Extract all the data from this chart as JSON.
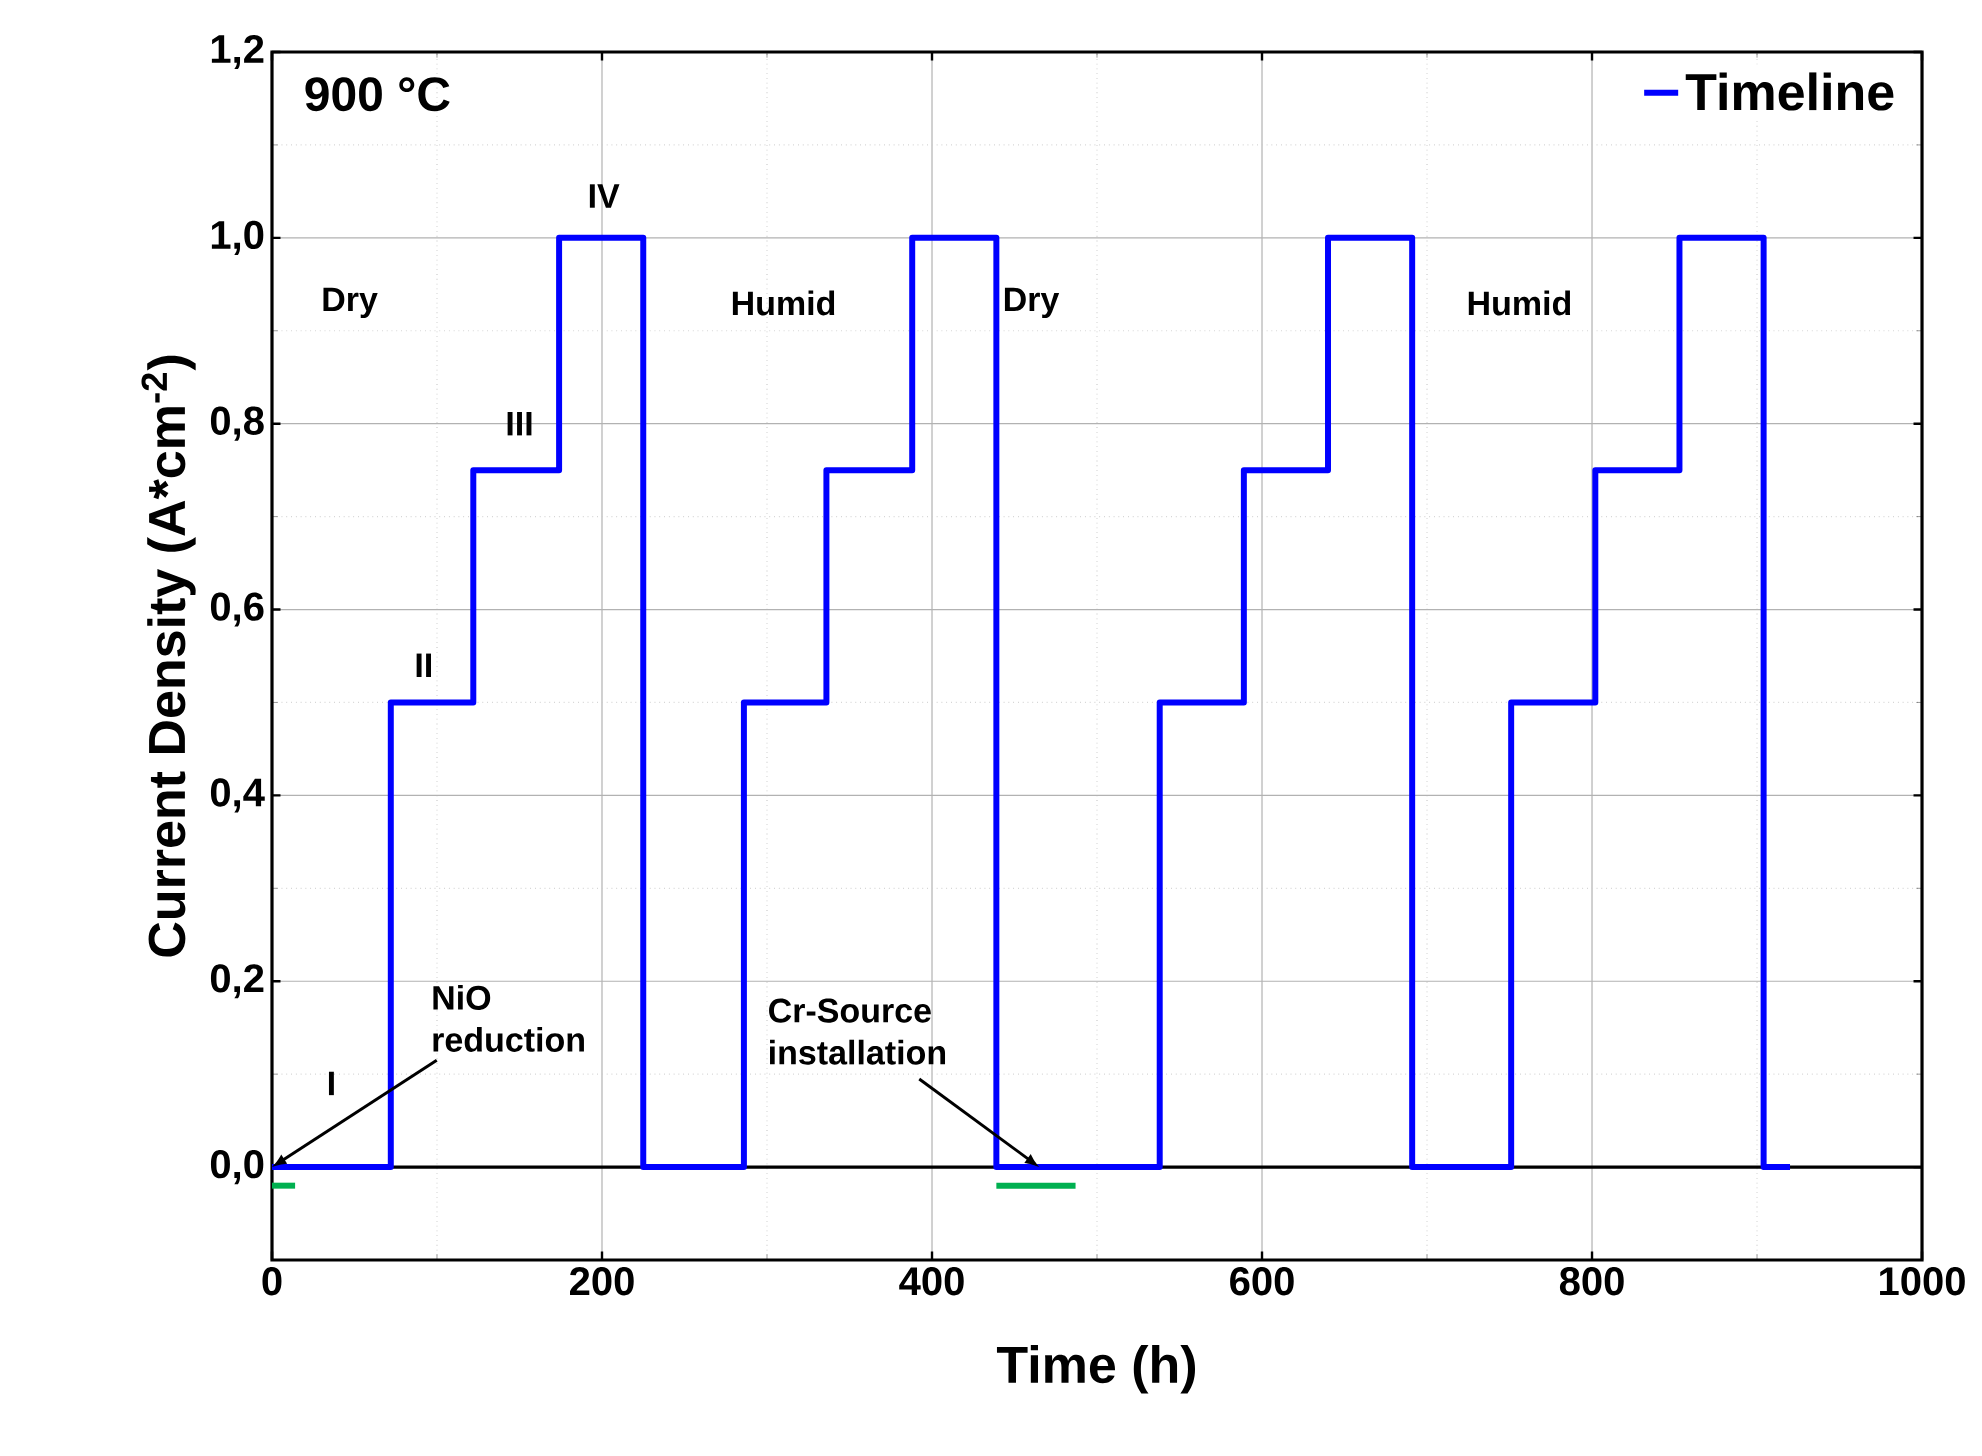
{
  "chart_data": {
    "type": "step",
    "xlabel": "Time (h)",
    "ylabel": "Current Density (A*cm$^{-2}$)",
    "xlim": [
      0,
      1000
    ],
    "xticks": [
      0,
      200,
      400,
      600,
      800,
      1000
    ],
    "ylim": [
      -0.1,
      1.2
    ],
    "yticks": [
      {
        "value": 0,
        "label": "0,0"
      },
      {
        "value": 0.2,
        "label": "0,2"
      },
      {
        "value": 0.4,
        "label": "0,4"
      },
      {
        "value": 0.6,
        "label": "0,6"
      },
      {
        "value": 0.8,
        "label": "0,8"
      },
      {
        "value": 1.0,
        "label": "1,0"
      },
      {
        "value": 1.2,
        "label": "1,2"
      }
    ],
    "grid": true,
    "legend": "top right",
    "series": [
      {
        "name": "Timeline",
        "color": "#0000ff",
        "x": [
          0,
          72,
          122,
          174,
          225,
          286,
          336,
          388,
          439,
          538,
          589,
          640,
          691,
          751,
          802,
          853,
          904,
          920
        ],
        "values": [
          0,
          0.5,
          0.75,
          1.0,
          0,
          0.5,
          0.75,
          1.0,
          0,
          0.5,
          0.75,
          1.0,
          0,
          0.5,
          0.75,
          1.0,
          0,
          0
        ]
      },
      {
        "color": "#00b050",
        "type": "line",
        "x": [
          0,
          14
        ],
        "values": [
          -0.02,
          -0.02
        ]
      },
      {
        "color": "#00b050",
        "type": "line",
        "x": [
          439,
          487
        ],
        "values": [
          -0.02,
          -0.02
        ]
      }
    ],
    "ref_lines": [
      {
        "axis": "y",
        "value": 0,
        "color": "#000000"
      }
    ],
    "annotations": [
      "900 °C",
      "I",
      "II",
      "III",
      "IV",
      "Dry",
      "Humid",
      "Dry",
      "Humid",
      {
        "text": "NiO reduction",
        "x": 0,
        "y": 0
      },
      {
        "text": "Cr-Source installation",
        "x": 465,
        "y": 0
      }
    ]
  }
}
